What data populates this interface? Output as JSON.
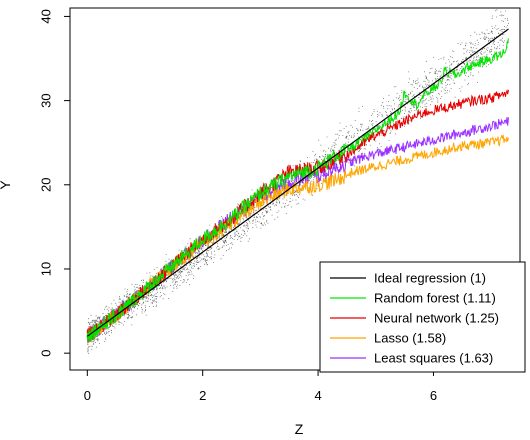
{
  "chart_data": {
    "type": "line",
    "title": "",
    "xlabel": "Z",
    "ylabel": "Y",
    "xlim": [
      -0.3,
      7.5
    ],
    "ylim": [
      -2,
      41
    ],
    "x_ticks": [
      0,
      2,
      4,
      6
    ],
    "y_ticks": [
      0,
      10,
      20,
      30,
      40
    ],
    "grid": false,
    "legend_position": "bottom-right",
    "scatter": {
      "name": "",
      "color": "#000000",
      "description_free": true
    },
    "series": [
      {
        "name": "Ideal regression (1)",
        "color": "#000000",
        "x": [
          0,
          7.3
        ],
        "y": [
          2.0,
          38.5
        ]
      },
      {
        "name": "Random forest (1.11)",
        "color": "#00e600",
        "x": [
          0,
          0.5,
          1,
          1.5,
          2,
          2.5,
          3,
          3.5,
          4,
          4.3,
          4.6,
          4.9,
          5.2,
          5.4,
          5.5,
          5.7,
          5.9,
          6.1,
          6.2,
          6.4,
          6.6,
          6.8,
          7.0,
          7.2,
          7.3
        ],
        "y": [
          2.0,
          4.5,
          7.5,
          10.5,
          13.5,
          16.0,
          19.0,
          21.0,
          22.0,
          23.5,
          24.5,
          26.0,
          27.5,
          28.5,
          31.0,
          29.5,
          31.0,
          32.0,
          33.5,
          33.0,
          34.0,
          34.5,
          35.0,
          35.5,
          37.0
        ]
      },
      {
        "name": "Neural network (1.25)",
        "color": "#e60000",
        "x": [
          0,
          0.5,
          1,
          1.5,
          2,
          2.5,
          3,
          3.5,
          4,
          4.3,
          4.6,
          4.9,
          5.2,
          5.5,
          5.8,
          6.1,
          6.4,
          6.7,
          7.0,
          7.3
        ],
        "y": [
          2.0,
          4.5,
          7.5,
          10.5,
          13.5,
          16.0,
          19.0,
          21.5,
          22.0,
          23.0,
          24.0,
          25.5,
          26.5,
          27.5,
          28.5,
          29.0,
          29.5,
          30.0,
          30.3,
          31.0
        ]
      },
      {
        "name": "Lasso (1.58)",
        "color": "#ffa500",
        "x": [
          0,
          0.5,
          1,
          1.5,
          2,
          2.5,
          3,
          3.5,
          4,
          4.3,
          4.6,
          4.9,
          5.2,
          5.5,
          5.8,
          6.1,
          6.4,
          6.7,
          7.0,
          7.3
        ],
        "y": [
          2.0,
          4.5,
          7.5,
          10.5,
          13.0,
          15.5,
          18.0,
          19.5,
          20.0,
          20.5,
          21.5,
          22.0,
          22.5,
          23.0,
          23.5,
          24.0,
          24.5,
          24.8,
          25.0,
          25.5
        ]
      },
      {
        "name": "Least squares (1.63)",
        "color": "#9b30ff",
        "x": [
          0,
          0.5,
          1,
          1.5,
          2,
          2.5,
          3,
          3.5,
          4,
          4.3,
          4.6,
          4.9,
          5.2,
          5.5,
          5.8,
          6.1,
          6.4,
          6.7,
          7.0,
          7.3
        ],
        "y": [
          2.0,
          4.5,
          7.5,
          10.5,
          13.5,
          16.0,
          18.5,
          20.5,
          21.0,
          22.0,
          22.8,
          23.5,
          24.0,
          24.5,
          25.0,
          25.5,
          26.0,
          26.5,
          27.0,
          27.5
        ]
      }
    ]
  }
}
